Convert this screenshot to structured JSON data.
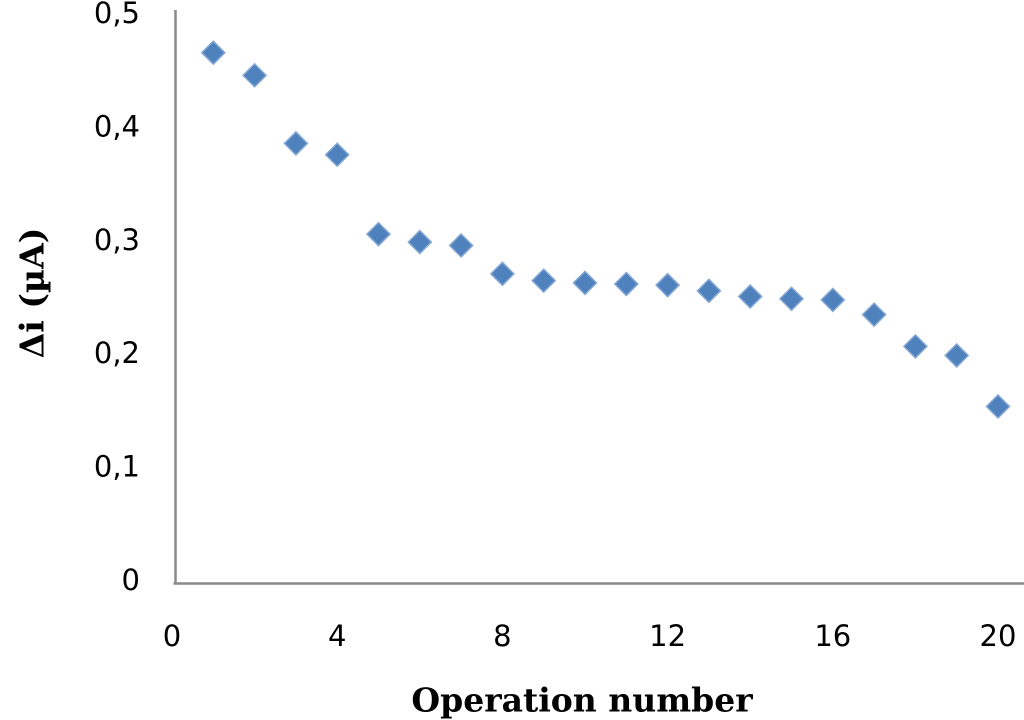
{
  "chart_data": {
    "type": "scatter",
    "title": "",
    "xlabel": "Operation number",
    "ylabel": "Δi (µA)",
    "x": [
      1,
      2,
      3,
      4,
      5,
      6,
      7,
      8,
      9,
      10,
      11,
      12,
      13,
      14,
      15,
      16,
      17,
      18,
      19,
      20
    ],
    "y": [
      0.465,
      0.445,
      0.385,
      0.375,
      0.305,
      0.298,
      0.295,
      0.27,
      0.264,
      0.262,
      0.261,
      0.26,
      0.255,
      0.25,
      0.248,
      0.247,
      0.234,
      0.206,
      0.198,
      0.153
    ],
    "xlim": [
      0,
      20
    ],
    "ylim": [
      0,
      0.5
    ],
    "x_ticks": [
      0,
      4,
      8,
      12,
      16,
      20
    ],
    "x_tick_labels": [
      "0",
      "4",
      "8",
      "12",
      "16",
      "20"
    ],
    "y_ticks": [
      0,
      0.1,
      0.2,
      0.3,
      0.4,
      0.5
    ],
    "y_tick_labels": [
      "0",
      "0,1",
      "0,2",
      "0,3",
      "0,4",
      "0,5"
    ],
    "decimal_separator": ",",
    "grid": false,
    "legend": "none",
    "marker": "diamond",
    "marker_color": "#4f81bd",
    "marker_edge_color": "#84a7d4",
    "axis_color": "#8a8a8a",
    "background_color": "#ffffff"
  }
}
